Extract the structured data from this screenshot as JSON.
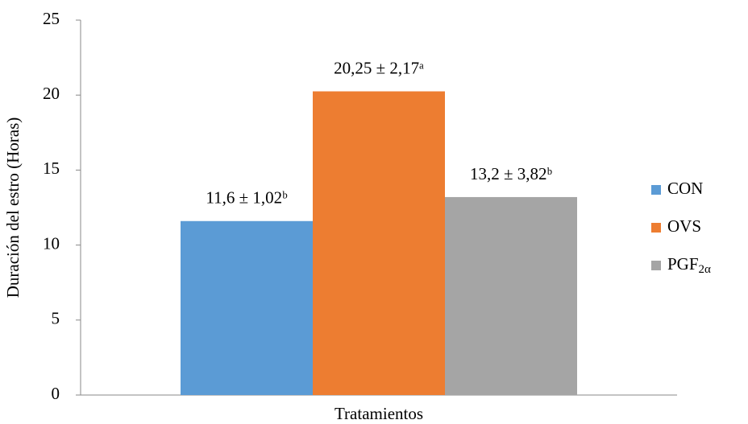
{
  "chart_data": {
    "type": "bar",
    "y_label": "Duración del estro (Horas)",
    "x_label": "Tratamientos",
    "categories": [
      null
    ],
    "series": [
      {
        "name": "CON",
        "color": "#5b9bd5",
        "values": [
          11.6
        ],
        "value_labels": [
          "11,6 ± 1,02ᵇ"
        ]
      },
      {
        "name": "OVS",
        "color": "#ed7d31",
        "values": [
          20.25
        ],
        "value_labels": [
          "20,25 ± 2,17ᵃ"
        ]
      },
      {
        "name": "PGF2α",
        "color": "#a5a5a5",
        "values": [
          13.2
        ],
        "value_labels": [
          "13,2 ± 3,82ᵇ"
        ]
      }
    ],
    "ylim": [
      0,
      25
    ],
    "yticks": [
      0,
      5,
      10,
      15,
      20,
      25
    ],
    "grid": false,
    "legend": "right"
  }
}
